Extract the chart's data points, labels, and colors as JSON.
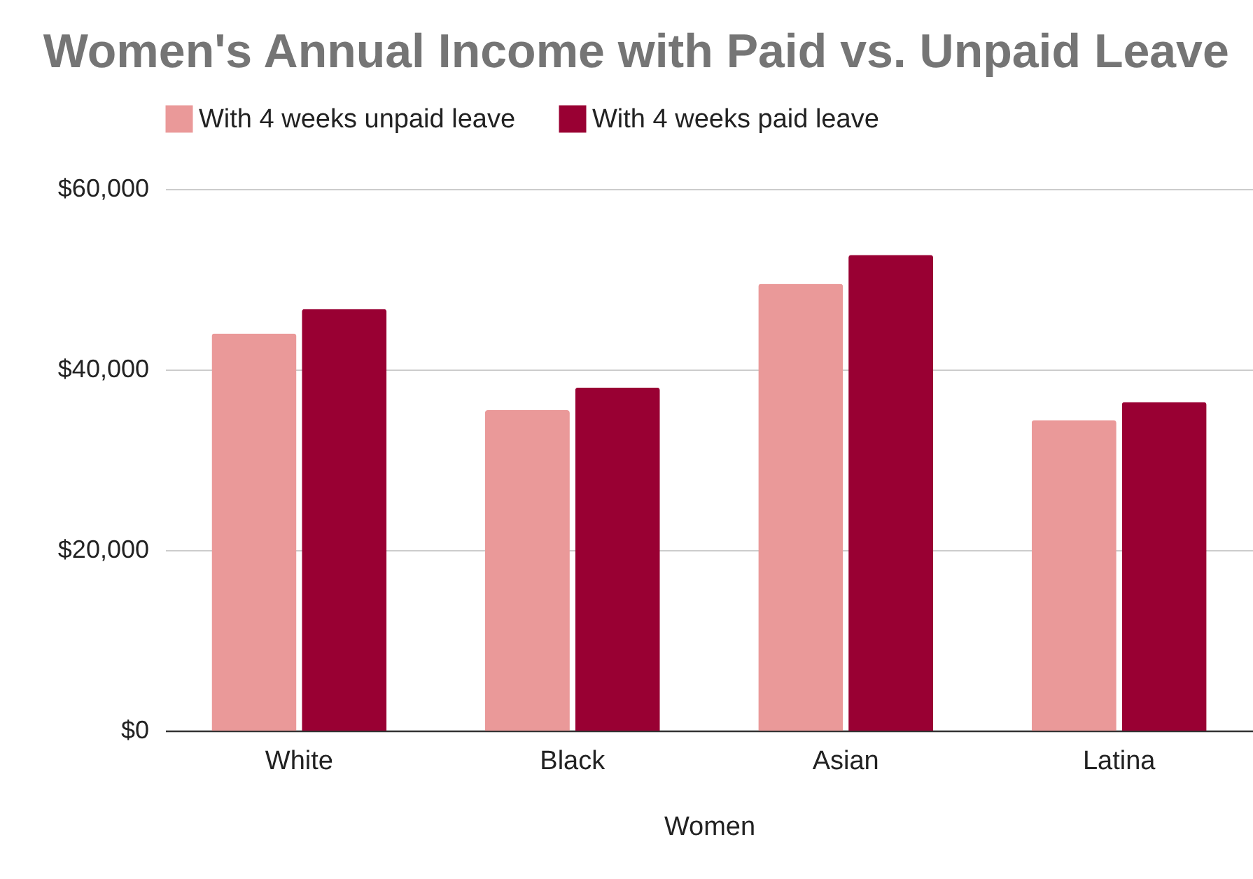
{
  "chart_data": {
    "type": "bar",
    "title": "Women's Annual Income with Paid vs. Unpaid Leave",
    "xlabel": "Women",
    "categories": [
      "White",
      "Black",
      "Asian",
      "Latina"
    ],
    "series": [
      {
        "name": "With 4 weeks unpaid leave",
        "color": "#ea9999",
        "values": [
          44000,
          35500,
          49500,
          34400
        ]
      },
      {
        "name": "With 4 weeks paid leave",
        "color": "#990033",
        "values": [
          46700,
          38000,
          52700,
          36400
        ]
      }
    ],
    "ylim": [
      0,
      60000
    ],
    "yticks": [
      {
        "value": 0,
        "label": "$0"
      },
      {
        "value": 20000,
        "label": "$20,000"
      },
      {
        "value": 40000,
        "label": "$40,000"
      },
      {
        "value": 60000,
        "label": "$60,000"
      }
    ],
    "grid": "y",
    "legend": "top"
  }
}
